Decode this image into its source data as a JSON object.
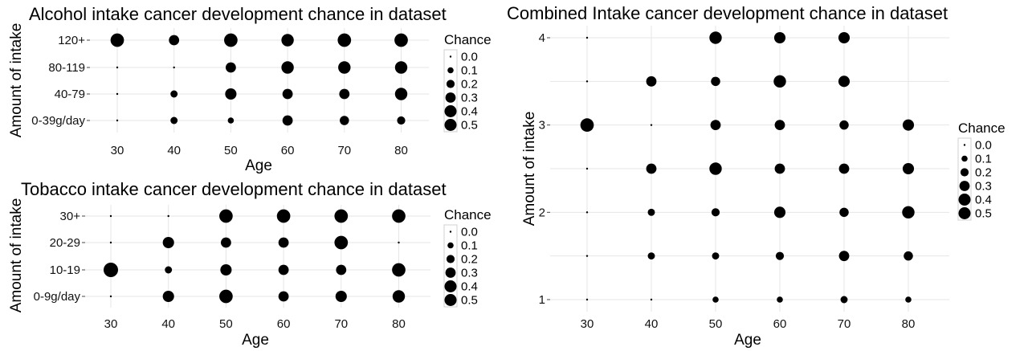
{
  "chart_data": [
    {
      "type": "scatter",
      "title": "Alcohol intake cancer development chance in dataset",
      "xlabel": "Age",
      "ylabel": "Amount of intake",
      "x_ticks": [
        30,
        40,
        50,
        60,
        70,
        80
      ],
      "y_categories": [
        "0-39g/day",
        "40-79",
        "80-119",
        "120+"
      ],
      "legend": {
        "title": "Chance",
        "values": [
          0.0,
          0.1,
          0.2,
          0.3,
          0.4,
          0.5
        ],
        "labels": [
          "0.0",
          "0.1",
          "0.2",
          "0.3",
          "0.4",
          "0.5"
        ],
        "position": "right"
      },
      "grid": true,
      "points": [
        {
          "x": 30,
          "y": "0-39g/day",
          "chance": 0.0
        },
        {
          "x": 40,
          "y": "0-39g/day",
          "chance": 0.15
        },
        {
          "x": 50,
          "y": "0-39g/day",
          "chance": 0.1
        },
        {
          "x": 60,
          "y": "0-39g/day",
          "chance": 0.3
        },
        {
          "x": 70,
          "y": "0-39g/day",
          "chance": 0.25
        },
        {
          "x": 80,
          "y": "0-39g/day",
          "chance": 0.2
        },
        {
          "x": 30,
          "y": "40-79",
          "chance": 0.0
        },
        {
          "x": 40,
          "y": "40-79",
          "chance": 0.15
        },
        {
          "x": 50,
          "y": "40-79",
          "chance": 0.35
        },
        {
          "x": 60,
          "y": "40-79",
          "chance": 0.3
        },
        {
          "x": 70,
          "y": "40-79",
          "chance": 0.3
        },
        {
          "x": 80,
          "y": "40-79",
          "chance": 0.4
        },
        {
          "x": 30,
          "y": "80-119",
          "chance": 0.0
        },
        {
          "x": 40,
          "y": "80-119",
          "chance": 0.0
        },
        {
          "x": 50,
          "y": "80-119",
          "chance": 0.3
        },
        {
          "x": 60,
          "y": "80-119",
          "chance": 0.4
        },
        {
          "x": 70,
          "y": "80-119",
          "chance": 0.4
        },
        {
          "x": 80,
          "y": "80-119",
          "chance": 0.4
        },
        {
          "x": 30,
          "y": "120+",
          "chance": 0.45
        },
        {
          "x": 40,
          "y": "120+",
          "chance": 0.3
        },
        {
          "x": 50,
          "y": "120+",
          "chance": 0.45
        },
        {
          "x": 60,
          "y": "120+",
          "chance": 0.4
        },
        {
          "x": 70,
          "y": "120+",
          "chance": 0.45
        },
        {
          "x": 80,
          "y": "120+",
          "chance": 0.45
        }
      ]
    },
    {
      "type": "scatter",
      "title": "Tobacco intake cancer development chance in dataset",
      "xlabel": "Age",
      "ylabel": "Amount of intake",
      "x_ticks": [
        30,
        40,
        50,
        60,
        70,
        80
      ],
      "y_categories": [
        "0-9g/day",
        "10-19",
        "20-29",
        "30+"
      ],
      "legend": {
        "title": "Chance",
        "values": [
          0.0,
          0.1,
          0.2,
          0.3,
          0.4,
          0.5
        ],
        "labels": [
          "0.0",
          "0.1",
          "0.2",
          "0.3",
          "0.4",
          "0.5"
        ],
        "position": "right"
      },
      "grid": true,
      "points": [
        {
          "x": 30,
          "y": "0-9g/day",
          "chance": 0.0
        },
        {
          "x": 40,
          "y": "0-9g/day",
          "chance": 0.35
        },
        {
          "x": 50,
          "y": "0-9g/day",
          "chance": 0.45
        },
        {
          "x": 60,
          "y": "0-9g/day",
          "chance": 0.3
        },
        {
          "x": 70,
          "y": "0-9g/day",
          "chance": 0.35
        },
        {
          "x": 80,
          "y": "0-9g/day",
          "chance": 0.4
        },
        {
          "x": 30,
          "y": "10-19",
          "chance": 0.5
        },
        {
          "x": 40,
          "y": "10-19",
          "chance": 0.15
        },
        {
          "x": 50,
          "y": "10-19",
          "chance": 0.35
        },
        {
          "x": 60,
          "y": "10-19",
          "chance": 0.3
        },
        {
          "x": 70,
          "y": "10-19",
          "chance": 0.3
        },
        {
          "x": 80,
          "y": "10-19",
          "chance": 0.45
        },
        {
          "x": 30,
          "y": "20-29",
          "chance": 0.0
        },
        {
          "x": 40,
          "y": "20-29",
          "chance": 0.35
        },
        {
          "x": 50,
          "y": "20-29",
          "chance": 0.3
        },
        {
          "x": 60,
          "y": "20-29",
          "chance": 0.3
        },
        {
          "x": 70,
          "y": "20-29",
          "chance": 0.45
        },
        {
          "x": 80,
          "y": "20-29",
          "chance": 0.0
        },
        {
          "x": 30,
          "y": "30+",
          "chance": 0.0
        },
        {
          "x": 40,
          "y": "30+",
          "chance": 0.0
        },
        {
          "x": 50,
          "y": "30+",
          "chance": 0.45
        },
        {
          "x": 60,
          "y": "30+",
          "chance": 0.45
        },
        {
          "x": 70,
          "y": "30+",
          "chance": 0.45
        },
        {
          "x": 80,
          "y": "30+",
          "chance": 0.45
        }
      ]
    },
    {
      "type": "scatter",
      "title": "Combined Intake cancer development chance in dataset",
      "xlabel": "Age",
      "ylabel": "Amount of intake",
      "x_ticks": [
        30,
        40,
        50,
        60,
        70,
        80
      ],
      "y_ticks": [
        1,
        2,
        3,
        4
      ],
      "xlim": [
        25,
        86
      ],
      "ylim": [
        0.9,
        4.1
      ],
      "legend": {
        "title": "Chance",
        "values": [
          0.0,
          0.1,
          0.2,
          0.3,
          0.4,
          0.5
        ],
        "labels": [
          "0.0",
          "0.1",
          "0.2",
          "0.3",
          "0.4",
          "0.5"
        ],
        "position": "right"
      },
      "grid": true,
      "points": [
        {
          "x": 30,
          "y": 1.0,
          "chance": 0.0
        },
        {
          "x": 40,
          "y": 1.0,
          "chance": 0.0
        },
        {
          "x": 50,
          "y": 1.0,
          "chance": 0.1
        },
        {
          "x": 60,
          "y": 1.0,
          "chance": 0.1
        },
        {
          "x": 70,
          "y": 1.0,
          "chance": 0.15
        },
        {
          "x": 80,
          "y": 1.0,
          "chance": 0.1
        },
        {
          "x": 30,
          "y": 1.5,
          "chance": 0.0
        },
        {
          "x": 40,
          "y": 1.5,
          "chance": 0.15
        },
        {
          "x": 50,
          "y": 1.5,
          "chance": 0.15
        },
        {
          "x": 60,
          "y": 1.5,
          "chance": 0.2
        },
        {
          "x": 70,
          "y": 1.5,
          "chance": 0.3
        },
        {
          "x": 80,
          "y": 1.5,
          "chance": 0.25
        },
        {
          "x": 30,
          "y": 2.0,
          "chance": 0.0
        },
        {
          "x": 40,
          "y": 2.0,
          "chance": 0.15
        },
        {
          "x": 50,
          "y": 2.0,
          "chance": 0.2
        },
        {
          "x": 60,
          "y": 2.0,
          "chance": 0.35
        },
        {
          "x": 70,
          "y": 2.0,
          "chance": 0.25
        },
        {
          "x": 80,
          "y": 2.0,
          "chance": 0.4
        },
        {
          "x": 30,
          "y": 2.5,
          "chance": 0.0
        },
        {
          "x": 40,
          "y": 2.5,
          "chance": 0.3
        },
        {
          "x": 50,
          "y": 2.5,
          "chance": 0.4
        },
        {
          "x": 60,
          "y": 2.5,
          "chance": 0.3
        },
        {
          "x": 70,
          "y": 2.5,
          "chance": 0.3
        },
        {
          "x": 80,
          "y": 2.5,
          "chance": 0.35
        },
        {
          "x": 30,
          "y": 3.0,
          "chance": 0.45
        },
        {
          "x": 40,
          "y": 3.0,
          "chance": 0.0
        },
        {
          "x": 50,
          "y": 3.0,
          "chance": 0.3
        },
        {
          "x": 60,
          "y": 3.0,
          "chance": 0.3
        },
        {
          "x": 70,
          "y": 3.0,
          "chance": 0.25
        },
        {
          "x": 80,
          "y": 3.0,
          "chance": 0.35
        },
        {
          "x": 30,
          "y": 3.5,
          "chance": 0.0
        },
        {
          "x": 40,
          "y": 3.5,
          "chance": 0.3
        },
        {
          "x": 50,
          "y": 3.5,
          "chance": 0.25
        },
        {
          "x": 60,
          "y": 3.5,
          "chance": 0.4
        },
        {
          "x": 70,
          "y": 3.5,
          "chance": 0.35
        },
        {
          "x": 30,
          "y": 4.0,
          "chance": 0.0
        },
        {
          "x": 50,
          "y": 4.0,
          "chance": 0.4
        },
        {
          "x": 60,
          "y": 4.0,
          "chance": 0.35
        },
        {
          "x": 70,
          "y": 4.0,
          "chance": 0.35
        }
      ]
    }
  ]
}
